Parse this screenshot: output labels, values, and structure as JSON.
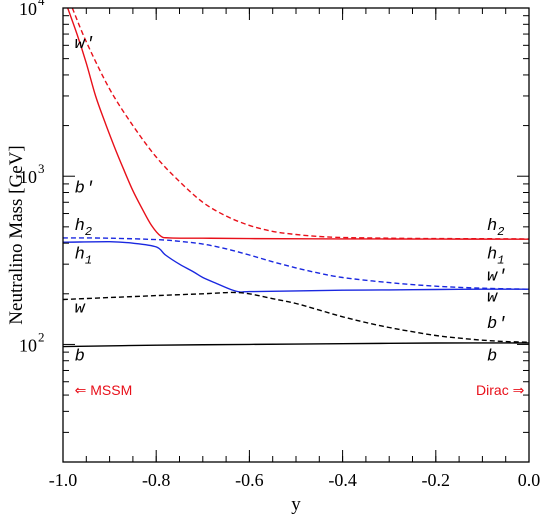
{
  "chart_data": {
    "type": "line",
    "title": "",
    "xlabel": "y",
    "ylabel": "Neutralino Mass [GeV]",
    "xlim": [
      -1.0,
      0.0
    ],
    "ylim": [
      20,
      10000
    ],
    "yscale": "log",
    "grid": false,
    "x_ticks": [
      "-1.0",
      "-0.8",
      "-0.6",
      "-0.4",
      "-0.2",
      "0.0"
    ],
    "y_ticks": [
      {
        "value": 100,
        "base": "10",
        "exp": "2"
      },
      {
        "value": 1000,
        "base": "10",
        "exp": "3"
      },
      {
        "value": 10000,
        "base": "10",
        "exp": "4"
      }
    ],
    "series": [
      {
        "color": "#e8101a",
        "style": "solid",
        "x": [
          -0.99,
          -0.97,
          -0.95,
          -0.93,
          -0.91,
          -0.89,
          -0.87,
          -0.85,
          -0.83,
          -0.81,
          -0.79,
          -0.77,
          -0.7,
          -0.6,
          -0.4,
          -0.2,
          0.0
        ],
        "y": [
          10000,
          7000,
          4700,
          3000,
          2100,
          1500,
          1100,
          820,
          640,
          510,
          440,
          430,
          428,
          426,
          424,
          423,
          422
        ]
      },
      {
        "color": "#e8101a",
        "style": "dashed",
        "x": [
          -0.98,
          -0.95,
          -0.9,
          -0.85,
          -0.8,
          -0.75,
          -0.7,
          -0.65,
          -0.6,
          -0.55,
          -0.5,
          -0.45,
          -0.4,
          -0.3,
          -0.2,
          -0.1,
          0.0
        ],
        "y": [
          10000,
          6300,
          3300,
          2000,
          1300,
          930,
          700,
          580,
          510,
          470,
          450,
          438,
          432,
          428,
          426,
          425,
          424
        ]
      },
      {
        "color": "#1a28e0",
        "style": "solid",
        "x": [
          -1.0,
          -0.9,
          -0.85,
          -0.8,
          -0.78,
          -0.75,
          -0.72,
          -0.7,
          -0.67,
          -0.64,
          -0.62,
          -0.6,
          -0.5,
          -0.4,
          -0.3,
          -0.2,
          -0.1,
          0.0
        ],
        "y": [
          405,
          408,
          400,
          380,
          340,
          300,
          270,
          250,
          230,
          212,
          205,
          206,
          208,
          210,
          211,
          212,
          213,
          213
        ]
      },
      {
        "color": "#1a28e0",
        "style": "dashed",
        "x": [
          -1.0,
          -0.9,
          -0.8,
          -0.75,
          -0.7,
          -0.65,
          -0.6,
          -0.55,
          -0.5,
          -0.45,
          -0.4,
          -0.3,
          -0.2,
          -0.1,
          0.0
        ],
        "y": [
          430,
          428,
          420,
          410,
          395,
          370,
          340,
          310,
          285,
          265,
          250,
          233,
          222,
          216,
          213
        ]
      },
      {
        "color": "#000000",
        "style": "dashed",
        "x": [
          -1.0,
          -0.9,
          -0.8,
          -0.7,
          -0.62,
          -0.55,
          -0.5,
          -0.45,
          -0.4,
          -0.35,
          -0.3,
          -0.25,
          -0.2,
          -0.15,
          -0.1,
          -0.05,
          0.0
        ],
        "y": [
          185,
          190,
          195,
          200,
          203,
          187,
          175,
          160,
          146,
          135,
          126,
          119,
          113,
          109,
          106,
          104,
          103
        ]
      },
      {
        "color": "#000000",
        "style": "solid",
        "x": [
          -1.0,
          -0.8,
          -0.6,
          -0.4,
          -0.2,
          0.0
        ],
        "y": [
          97,
          99,
          100,
          101,
          102,
          102
        ]
      }
    ],
    "curve_labels": [
      {
        "base": "w′",
        "sub": "",
        "x": -0.975,
        "y": 5800
      },
      {
        "base": "b′",
        "sub": "",
        "x": -0.975,
        "y": 800
      },
      {
        "base": "h",
        "sub": "2",
        "x": -0.975,
        "y": 480
      },
      {
        "base": "h",
        "sub": "1",
        "x": -0.975,
        "y": 325
      },
      {
        "base": "w",
        "sub": "",
        "x": -0.975,
        "y": 155
      },
      {
        "base": "b",
        "sub": "",
        "x": -0.975,
        "y": 80
      },
      {
        "base": "h",
        "sub": "2",
        "x": -0.09,
        "y": 480
      },
      {
        "base": "h",
        "sub": "1",
        "x": -0.09,
        "y": 325
      },
      {
        "base": "w′",
        "sub": "",
        "x": -0.09,
        "y": 240
      },
      {
        "base": "w",
        "sub": "",
        "x": -0.09,
        "y": 180
      },
      {
        "base": "b′",
        "sub": "",
        "x": -0.09,
        "y": 125
      },
      {
        "base": "b",
        "sub": "",
        "x": -0.09,
        "y": 80
      }
    ],
    "annotations": [
      {
        "text": "⇐ MSSM",
        "x": -0.975,
        "y": 50,
        "anchor": "start"
      },
      {
        "text": "Dirac ⇒",
        "x": -0.01,
        "y": 50,
        "anchor": "end"
      }
    ]
  }
}
